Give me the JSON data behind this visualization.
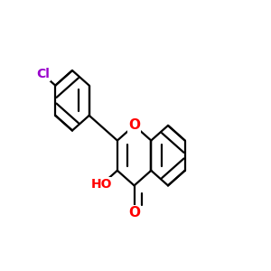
{
  "background_color": "#ffffff",
  "bond_color": "#000000",
  "atom_colors": {
    "O": "#ff0000",
    "Cl": "#9900cc"
  },
  "figsize": [
    3.0,
    3.0
  ],
  "dpi": 100,
  "line_width": 1.6,
  "font_size": 11
}
